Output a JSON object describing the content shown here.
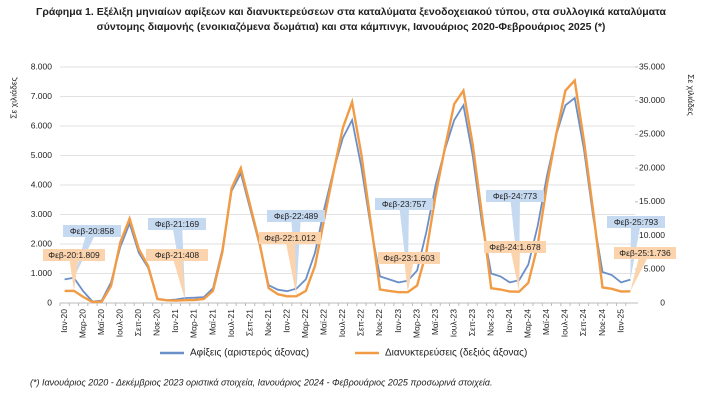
{
  "chart_data": {
    "type": "line",
    "title": [
      "Γράφημα 1. Εξέλιξη μηνιαίων αφίξεων και διανυκτερεύσεων στα καταλύματα ξενοδοχειακού τύπου, στα συλλογικά καταλύματα",
      "σύντομης διαμονής (ενοικιαζόμενα δωμάτια) και στα κάμπινγκ, Ιανουάριος 2020-Φεβρουάριος 2025 (*)"
    ],
    "ylabel": "Σε χιλιάδες",
    "y2label": "Σε χιλιάδες",
    "footnote": "(*) Ιανουάριος 2020 - Δεκέμβριος 2023 οριστικά στοιχεία, Ιανουάριος 2024 - Φεβρουάριος 2025 προσωρινά στοιχεία.",
    "categories": [
      "Ιαν-20",
      null,
      "Μαρ-20",
      null,
      "Μαϊ-20",
      null,
      "Ιουλ-20",
      null,
      "Σεπ-20",
      null,
      "Νοε-20",
      null,
      "Ιαν-21",
      null,
      "Μαρ-21",
      null,
      "Μαϊ-21",
      null,
      "Ιουλ-21",
      null,
      "Σεπ-21",
      null,
      "Νοε-21",
      null,
      "Ιαν-22",
      null,
      "Μαρ-22",
      null,
      "Μαϊ-22",
      null,
      "Ιουλ-22",
      null,
      "Σεπ-22",
      null,
      "Νοε-22",
      null,
      "Ιαν-23",
      null,
      "Μαρ-23",
      null,
      "Μαϊ-23",
      null,
      "Ιουλ-23",
      null,
      "Σεπ-23",
      null,
      "Νοε-23",
      null,
      "Ιαν-24",
      null,
      "Μαρ-24",
      null,
      "Μαϊ-24",
      null,
      "Ιουλ-24",
      null,
      "Σεπ-24",
      null,
      "Νοε-24",
      null,
      "Ιαν-25",
      null
    ],
    "series": [
      {
        "name": "Αφίξεις (αριστερός άξονας)",
        "color": "#6a8fc9",
        "axis": "y",
        "values": [
          800,
          858,
          400,
          50,
          80,
          700,
          1900,
          2700,
          1700,
          1200,
          150,
          100,
          120,
          169,
          180,
          200,
          500,
          1800,
          3800,
          4400,
          3200,
          2000,
          600,
          450,
          400,
          489,
          800,
          1700,
          3200,
          4500,
          5600,
          6200,
          4600,
          2600,
          900,
          800,
          700,
          757,
          1100,
          2400,
          4000,
          5200,
          6200,
          6700,
          5000,
          2700,
          1000,
          900,
          700,
          773,
          1300,
          2600,
          4300,
          5700,
          6700,
          6950,
          5200,
          2900,
          1050,
          950,
          700,
          793
        ]
      },
      {
        "name": "Διανυκτερεύσεις (δεξιός άξονας)",
        "color": "#f29b45",
        "axis": "y2",
        "values": [
          1800,
          1809,
          900,
          150,
          200,
          2500,
          9000,
          12500,
          8000,
          5500,
          600,
          400,
          350,
          408,
          450,
          600,
          1800,
          7500,
          17000,
          20000,
          14500,
          9000,
          2200,
          1300,
          1000,
          1012,
          1800,
          5500,
          12500,
          19500,
          26000,
          29800,
          22000,
          12000,
          2000,
          1800,
          1600,
          1603,
          2600,
          7500,
          16000,
          23000,
          29500,
          31500,
          23500,
          13000,
          2200,
          2000,
          1700,
          1678,
          3000,
          8500,
          17500,
          25000,
          31500,
          33000,
          24000,
          13500,
          2300,
          2100,
          1700,
          1736
        ]
      }
    ],
    "annotations": [
      "Φεβ-20:858",
      "Φεβ-21:169",
      "Φεβ-22:489",
      "Φεβ-23:757",
      "Φεβ-24:773",
      "Φεβ-25:793",
      "Φεβ-20:1.809",
      "Φεβ-21:408",
      "Φεβ-22:1.012",
      "Φεβ-23:1.603",
      "Φεβ-24:1.678",
      "Φεβ-25:1.736"
    ],
    "ylim": [
      0,
      8000
    ],
    "yticks": [
      0,
      {
        "value": 1000,
        "label": "1.000"
      },
      {
        "value": 2000,
        "label": "2.000"
      },
      {
        "value": 3000,
        "label": "3.000"
      },
      {
        "value": 4000,
        "label": "4.000"
      },
      {
        "value": 5000,
        "label": "5.000"
      },
      {
        "value": 6000,
        "label": "6.000"
      },
      {
        "value": 7000,
        "label": "7.000"
      },
      {
        "value": 8000,
        "label": "8.000"
      }
    ],
    "y2lim": [
      0,
      35000
    ],
    "y2ticks": [
      0,
      {
        "value": 5000,
        "label": "5.000"
      },
      {
        "value": 10000,
        "label": "10.000"
      },
      {
        "value": 15000,
        "label": "15.000"
      },
      {
        "value": 20000,
        "label": "20.000"
      },
      {
        "value": 25000,
        "label": "25.000"
      },
      {
        "value": 30000,
        "label": "30.000"
      },
      {
        "value": 35000,
        "label": "35.000"
      }
    ],
    "grid": true
  }
}
